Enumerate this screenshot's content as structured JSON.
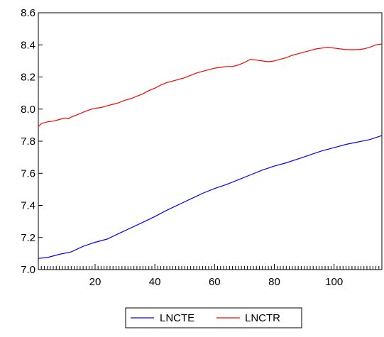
{
  "chart_data": {
    "type": "line",
    "title": "",
    "xlabel": "",
    "ylabel": "",
    "xlim": [
      1,
      116
    ],
    "ylim": [
      7.0,
      8.6
    ],
    "x_ticks": [
      20,
      40,
      60,
      80,
      100
    ],
    "y_ticks": [
      7.0,
      7.2,
      7.4,
      7.6,
      7.8,
      8.0,
      8.2,
      8.4,
      8.6
    ],
    "x_tick_labels": [
      "20",
      "40",
      "60",
      "80",
      "100"
    ],
    "y_tick_labels": [
      "7.0",
      "7.2",
      "7.4",
      "7.6",
      "7.8",
      "8.0",
      "8.2",
      "8.4",
      "8.6"
    ],
    "grid": false,
    "legend_position": "bottom-center",
    "legend_entries": [
      "LNCTE",
      "LNCTR"
    ],
    "series": [
      {
        "name": "LNCTE",
        "color": "#0000ff",
        "points": [
          [
            1,
            7.07
          ],
          [
            4,
            7.075
          ],
          [
            8,
            7.095
          ],
          [
            12,
            7.11
          ],
          [
            16,
            7.145
          ],
          [
            20,
            7.17
          ],
          [
            24,
            7.19
          ],
          [
            28,
            7.225
          ],
          [
            32,
            7.26
          ],
          [
            36,
            7.295
          ],
          [
            40,
            7.33
          ],
          [
            44,
            7.37
          ],
          [
            48,
            7.405
          ],
          [
            52,
            7.44
          ],
          [
            56,
            7.475
          ],
          [
            60,
            7.505
          ],
          [
            64,
            7.53
          ],
          [
            68,
            7.56
          ],
          [
            72,
            7.59
          ],
          [
            76,
            7.62
          ],
          [
            80,
            7.645
          ],
          [
            84,
            7.665
          ],
          [
            88,
            7.69
          ],
          [
            92,
            7.715
          ],
          [
            96,
            7.74
          ],
          [
            100,
            7.76
          ],
          [
            104,
            7.78
          ],
          [
            108,
            7.795
          ],
          [
            112,
            7.81
          ],
          [
            116,
            7.835
          ]
        ]
      },
      {
        "name": "LNCTR",
        "color": "#ff0000",
        "points": [
          [
            1,
            7.89
          ],
          [
            2,
            7.91
          ],
          [
            4,
            7.92
          ],
          [
            6,
            7.925
          ],
          [
            8,
            7.935
          ],
          [
            10,
            7.945
          ],
          [
            11,
            7.94
          ],
          [
            12,
            7.95
          ],
          [
            14,
            7.965
          ],
          [
            16,
            7.98
          ],
          [
            18,
            7.995
          ],
          [
            20,
            8.005
          ],
          [
            22,
            8.01
          ],
          [
            24,
            8.02
          ],
          [
            26,
            8.03
          ],
          [
            28,
            8.04
          ],
          [
            30,
            8.055
          ],
          [
            32,
            8.065
          ],
          [
            34,
            8.08
          ],
          [
            36,
            8.095
          ],
          [
            38,
            8.115
          ],
          [
            40,
            8.13
          ],
          [
            42,
            8.15
          ],
          [
            44,
            8.165
          ],
          [
            46,
            8.175
          ],
          [
            48,
            8.185
          ],
          [
            50,
            8.195
          ],
          [
            52,
            8.21
          ],
          [
            54,
            8.225
          ],
          [
            56,
            8.235
          ],
          [
            58,
            8.245
          ],
          [
            60,
            8.255
          ],
          [
            62,
            8.26
          ],
          [
            64,
            8.265
          ],
          [
            66,
            8.265
          ],
          [
            68,
            8.275
          ],
          [
            70,
            8.29
          ],
          [
            72,
            8.31
          ],
          [
            74,
            8.305
          ],
          [
            76,
            8.3
          ],
          [
            78,
            8.295
          ],
          [
            80,
            8.3
          ],
          [
            82,
            8.31
          ],
          [
            84,
            8.32
          ],
          [
            86,
            8.335
          ],
          [
            88,
            8.345
          ],
          [
            90,
            8.355
          ],
          [
            92,
            8.365
          ],
          [
            94,
            8.375
          ],
          [
            96,
            8.38
          ],
          [
            98,
            8.385
          ],
          [
            100,
            8.38
          ],
          [
            102,
            8.375
          ],
          [
            104,
            8.37
          ],
          [
            106,
            8.37
          ],
          [
            108,
            8.37
          ],
          [
            110,
            8.375
          ],
          [
            112,
            8.385
          ],
          [
            114,
            8.4
          ],
          [
            116,
            8.405
          ]
        ]
      }
    ]
  }
}
